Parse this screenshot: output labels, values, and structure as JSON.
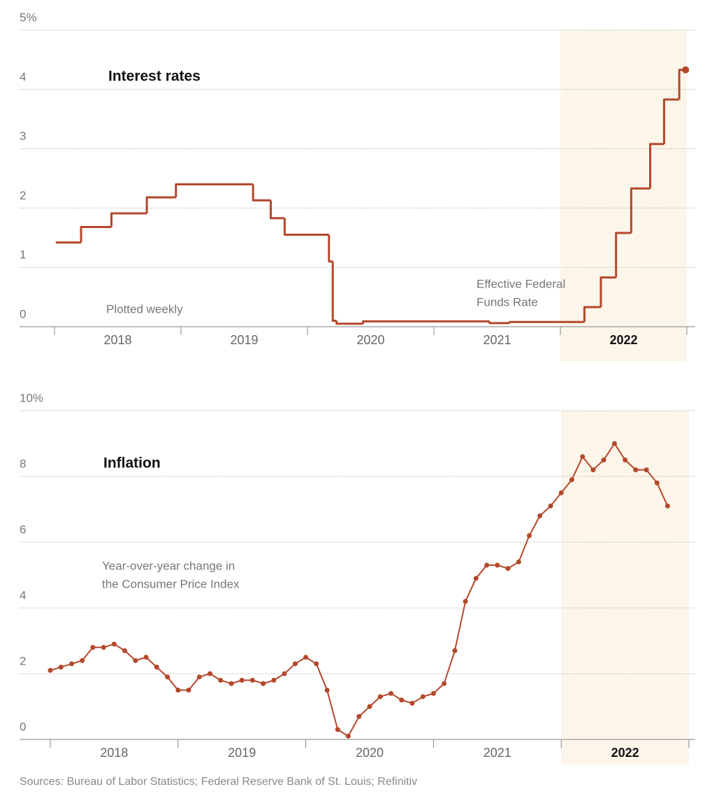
{
  "chart_data": [
    {
      "type": "line",
      "title": "Interest rates",
      "step": true,
      "end_marker": true,
      "annotations": [
        "Plotted weekly"
      ],
      "label_lines": [
        "Effective Federal",
        "Funds Rate"
      ],
      "categories": [
        "2018",
        "2019",
        "2020",
        "2021",
        "2022"
      ],
      "highlight": [
        2022,
        2023
      ],
      "xlim": [
        2018,
        2023
      ],
      "xticks": [
        2018,
        2019,
        2020,
        2021,
        2022,
        2023
      ],
      "ylim": [
        0,
        5
      ],
      "yticks": [
        0,
        1,
        2,
        3,
        4,
        {
          "value": 5,
          "label": "5%"
        }
      ],
      "grid": true,
      "series": [
        {
          "color": "#b3482b",
          "x": [
            2018.01,
            2018.21,
            2018.45,
            2018.73,
            2018.96,
            2019.57,
            2019.71,
            2019.82,
            2020.17,
            2020.2,
            2020.23,
            2020.44,
            2021.44,
            2021.6,
            2022.19,
            2022.32,
            2022.44,
            2022.56,
            2022.71,
            2022.82,
            2022.94,
            2022.99
          ],
          "values": [
            1.42,
            1.68,
            1.91,
            2.18,
            2.4,
            2.13,
            1.83,
            1.55,
            1.1,
            0.1,
            0.05,
            0.09,
            0.06,
            0.08,
            0.33,
            0.83,
            1.58,
            2.33,
            3.08,
            3.83,
            4.33,
            4.33
          ]
        }
      ]
    },
    {
      "type": "line",
      "title": "Inflation",
      "markers": true,
      "annotations": [
        "Year-over-year change in",
        "the Consumer Price Index"
      ],
      "categories": [
        "2018",
        "2019",
        "2020",
        "2021",
        "2022"
      ],
      "highlight": [
        2022,
        2023
      ],
      "xlim": [
        2018,
        2023
      ],
      "xticks": [
        2018,
        2019,
        2020,
        2021,
        2022,
        2023
      ],
      "ylim": [
        0,
        10
      ],
      "yticks": [
        0,
        2,
        4,
        6,
        8,
        {
          "value": 10,
          "label": "10%"
        }
      ],
      "grid": true,
      "series": [
        {
          "color": "#b3482b",
          "x": [
            2018,
            2018.083,
            2018.167,
            2018.25,
            2018.333,
            2018.417,
            2018.5,
            2018.583,
            2018.667,
            2018.75,
            2018.833,
            2018.917,
            2019,
            2019.083,
            2019.167,
            2019.25,
            2019.333,
            2019.417,
            2019.5,
            2019.583,
            2019.667,
            2019.75,
            2019.833,
            2019.917,
            2020,
            2020.083,
            2020.167,
            2020.25,
            2020.333,
            2020.417,
            2020.5,
            2020.583,
            2020.667,
            2020.75,
            2020.833,
            2020.917,
            2021,
            2021.083,
            2021.167,
            2021.25,
            2021.333,
            2021.417,
            2021.5,
            2021.583,
            2021.667,
            2021.75,
            2021.833,
            2021.917,
            2022,
            2022.083,
            2022.167,
            2022.25,
            2022.333,
            2022.417,
            2022.5,
            2022.583,
            2022.667,
            2022.75,
            2022.833
          ],
          "values": [
            2.1,
            2.2,
            2.3,
            2.4,
            2.8,
            2.8,
            2.9,
            2.7,
            2.4,
            2.5,
            2.2,
            1.9,
            1.5,
            1.5,
            1.9,
            2.0,
            1.8,
            1.7,
            1.8,
            1.8,
            1.7,
            1.8,
            2.0,
            2.3,
            2.5,
            2.3,
            1.5,
            0.3,
            0.1,
            0.7,
            1.0,
            1.3,
            1.4,
            1.2,
            1.1,
            1.3,
            1.4,
            1.7,
            2.7,
            4.2,
            4.9,
            5.3,
            5.3,
            5.2,
            5.4,
            6.2,
            6.8,
            7.1,
            7.5,
            7.9,
            8.6,
            8.2,
            8.5,
            9.0,
            8.5,
            8.2,
            8.2,
            7.8,
            7.1
          ]
        }
      ]
    }
  ],
  "source": "Sources: Bureau of Labor Statistics; Federal Reserve Bank of St. Louis; Refinitiv"
}
